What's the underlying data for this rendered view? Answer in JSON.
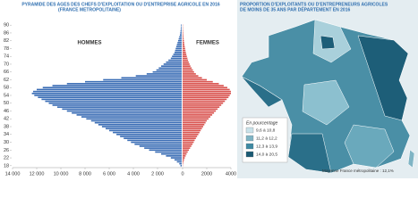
{
  "chart_data": [
    {
      "type": "pyramid",
      "title": "PYRAMIDE DES AGES DES CHEFS D'EXPLOITATION OU D'ENTREPRISE AGRICOLE EN 2016",
      "subtitle": "(FRANCE METROPOLITAINE)",
      "y": [
        18,
        19,
        20,
        21,
        22,
        23,
        24,
        25,
        26,
        27,
        28,
        29,
        30,
        31,
        32,
        33,
        34,
        35,
        36,
        37,
        38,
        39,
        40,
        41,
        42,
        43,
        44,
        45,
        46,
        47,
        48,
        49,
        50,
        51,
        52,
        53,
        54,
        55,
        56,
        57,
        58,
        59,
        60,
        61,
        62,
        63,
        64,
        65,
        66,
        67,
        68,
        69,
        70,
        71,
        72,
        73,
        74,
        75,
        76,
        77,
        78,
        79,
        80,
        81,
        82,
        83,
        84,
        85,
        86,
        87,
        88,
        89,
        90
      ],
      "ylim": [
        17,
        91
      ],
      "yticks": [
        18,
        22,
        26,
        30,
        34,
        38,
        42,
        46,
        50,
        54,
        58,
        62,
        66,
        70,
        74,
        78,
        82,
        86,
        90
      ],
      "xlim": [
        0,
        14000
      ],
      "xticks": [
        {
          "value": 14000,
          "label": "14 000"
        },
        {
          "value": 12000,
          "label": "12 000"
        },
        {
          "value": 10000,
          "label": "10 000"
        },
        {
          "value": 8000,
          "label": "8 000"
        },
        {
          "value": 6000,
          "label": "6 000"
        },
        {
          "value": 4000,
          "label": "4 000"
        },
        {
          "value": 2000,
          "label": "2 000"
        }
      ],
      "x2lim": [
        0,
        4000
      ],
      "x2ticks": [
        0,
        2000,
        4000
      ],
      "series": [
        {
          "name": "HOMMES",
          "color": "#3a6db5",
          "values": [
            100,
            200,
            400,
            600,
            900,
            1300,
            1700,
            2200,
            2700,
            3100,
            3500,
            3900,
            4200,
            4500,
            4800,
            5100,
            5400,
            5700,
            6000,
            6300,
            6600,
            6900,
            7200,
            7500,
            7900,
            8300,
            8700,
            9100,
            9500,
            9900,
            10300,
            10700,
            11000,
            11300,
            11600,
            11900,
            12200,
            12400,
            12300,
            12000,
            11500,
            10700,
            9500,
            8000,
            6500,
            5000,
            3800,
            2900,
            2400,
            2100,
            1900,
            1700,
            1500,
            1300,
            1100,
            900,
            800,
            700,
            600,
            550,
            500,
            450,
            400,
            350,
            300,
            250,
            200,
            150,
            120,
            100,
            80,
            60,
            50
          ]
        },
        {
          "name": "FEMMES",
          "color": "#d9534f",
          "axis": "x2",
          "values": [
            20,
            40,
            80,
            120,
            180,
            250,
            330,
            420,
            520,
            620,
            720,
            820,
            920,
            1000,
            1100,
            1200,
            1300,
            1400,
            1500,
            1600,
            1700,
            1800,
            1900,
            2000,
            2150,
            2300,
            2450,
            2600,
            2750,
            2900,
            3050,
            3200,
            3350,
            3500,
            3650,
            3800,
            3900,
            4000,
            4000,
            3900,
            3700,
            3400,
            3000,
            2500,
            2000,
            1600,
            1300,
            1100,
            950,
            850,
            750,
            650,
            580,
            510,
            450,
            400,
            350,
            310,
            270,
            240,
            210,
            180,
            150,
            130,
            110,
            90,
            75,
            60,
            50,
            40,
            30,
            25,
            20
          ]
        }
      ]
    }
  ],
  "map": {
    "title": [
      "PROPORTION D'EXPLOITANTS OU D'ENTREPRENEURS AGRICOLES",
      "DE MOINS DE 35 ANS PAR DÉPARTEMENT EN 2016"
    ],
    "legend": {
      "title": "En pourcentage",
      "classes": [
        {
          "label": "9,6 à 10,8",
          "color": "#c9e2ea"
        },
        {
          "label": "11,2 à 12,2",
          "color": "#7fb4c4"
        },
        {
          "label": "12,3 à 13,9",
          "color": "#3f8aa3"
        },
        {
          "label": "14,0 à 20,5",
          "color": "#1b5a74"
        }
      ]
    },
    "note": "Moyenne France métropolitaine : 12,1%"
  }
}
